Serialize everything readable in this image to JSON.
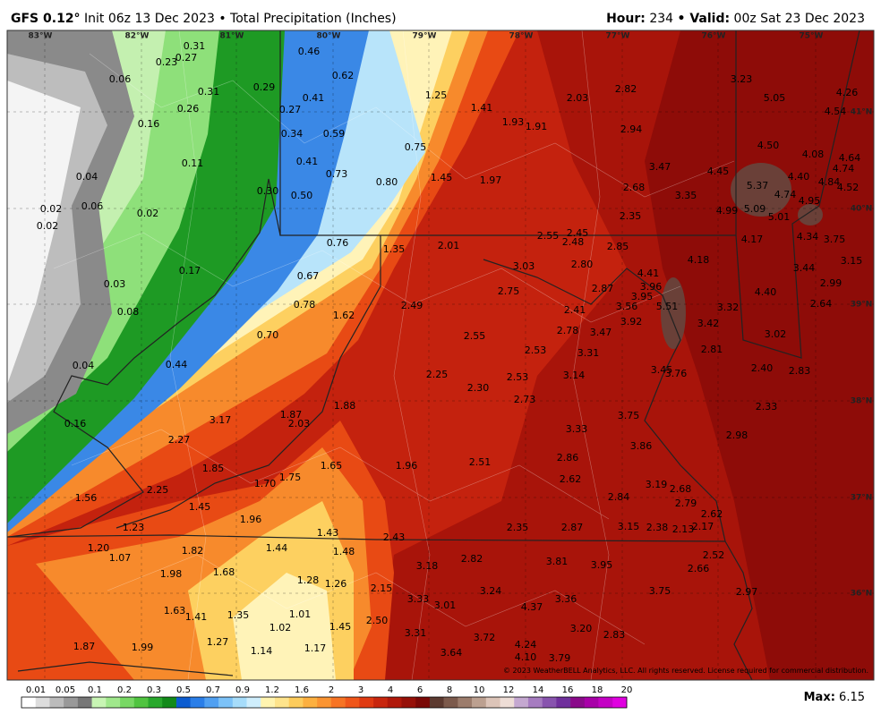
{
  "header": {
    "model": "GFS 0.12°",
    "title": "Init 06z 13 Dec 2023 • Total Precipitation (Inches)",
    "hour_label": "Hour:",
    "hour": "234",
    "valid_label": "• Valid:",
    "valid": "00z Sat 23 Dec 2023"
  },
  "map": {
    "lon_labels": [
      "83°W",
      "82°W",
      "81°W",
      "80°W",
      "79°W",
      "78°W",
      "77°W",
      "76°W",
      "75°W"
    ],
    "lat_labels": [
      "41°N",
      "40°N",
      "39°N",
      "38°N",
      "37°N",
      "36°N"
    ],
    "values": [
      "0.31",
      "0.27",
      "0.23",
      "0.06",
      "0.31",
      "0.29",
      "0.26",
      "0.16",
      "0.11",
      "0.04",
      "0.30",
      "0.02",
      "0.06",
      "0.02",
      "0.02",
      "0.17",
      "0.03",
      "0.08",
      "0.04",
      "0.44",
      "0.16",
      "0.46",
      "0.62",
      "0.41",
      "0.27",
      "0.34",
      "0.59",
      "0.41",
      "0.73",
      "0.80",
      "0.50",
      "0.75",
      "0.76",
      "0.67",
      "0.78",
      "0.70",
      "1.25",
      "1.41",
      "1.93",
      "1.91",
      "1.45",
      "1.97",
      "2.03",
      "1.35",
      "2.01",
      "1.62",
      "2.49",
      "2.82",
      "2.94",
      "3.23",
      "5.05",
      "4.26",
      "4.54",
      "4.50",
      "4.08",
      "4.64",
      "4.74",
      "3.47",
      "4.45",
      "4.40",
      "4.84",
      "4.52",
      "5.37",
      "4.74",
      "4.95",
      "2.68",
      "3.35",
      "4.99",
      "5.09",
      "5.01",
      "2.35",
      "4.34",
      "3.75",
      "4.17",
      "2.55",
      "2.45",
      "2.48",
      "2.85",
      "2.80",
      "3.03",
      "2.75",
      "4.18",
      "3.44",
      "3.15",
      "4.41",
      "2.99",
      "2.87",
      "3.96",
      "3.95",
      "4.40",
      "2.64",
      "3.56",
      "5.51",
      "3.32",
      "2.41",
      "3.92",
      "3.42",
      "2.78",
      "3.47",
      "3.02",
      "2.55",
      "2.53",
      "3.31",
      "2.81",
      "2.40",
      "2.83",
      "3.45",
      "3.76",
      "2.25",
      "3.14",
      "2.53",
      "2.30",
      "2.73",
      "1.88",
      "3.17",
      "1.87",
      "2.03",
      "2.33",
      "3.75",
      "3.33",
      "2.98",
      "2.27",
      "3.86",
      "1.65",
      "1.96",
      "2.51",
      "2.86",
      "1.85",
      "1.75",
      "1.70",
      "2.62",
      "3.19",
      "2.68",
      "2.25",
      "1.56",
      "2.84",
      "2.79",
      "1.45",
      "2.62",
      "1.96",
      "2.35",
      "2.87",
      "3.15",
      "2.38",
      "2.13",
      "2.17",
      "1.23",
      "1.43",
      "2.43",
      "1.20",
      "1.07",
      "1.82",
      "1.44",
      "1.48",
      "2.52",
      "2.82",
      "3.81",
      "3.18",
      "3.95",
      "1.98",
      "1.68",
      "2.66",
      "1.28",
      "1.26",
      "2.15",
      "3.24",
      "3.75",
      "2.97",
      "3.33",
      "3.01",
      "3.36",
      "4.37",
      "1.63",
      "1.41",
      "1.35",
      "1.01",
      "1.02",
      "1.45",
      "2.50",
      "3.20",
      "2.83",
      "3.31",
      "3.72",
      "1.87",
      "1.99",
      "1.27",
      "1.14",
      "1.17",
      "3.64",
      "4.24",
      "4.10",
      "3.79"
    ],
    "copyright": "© 2023 WeatherBELL Analytics, LLC. All rights reserved. License required for commercial distribution."
  },
  "legend": {
    "ticks": [
      "0.01",
      "0.05",
      "0.1",
      "0.2",
      "0.3",
      "0.5",
      "0.7",
      "0.9",
      "1.2",
      "1.6",
      "2",
      "3",
      "4",
      "6",
      "8",
      "10",
      "12",
      "14",
      "16",
      "18",
      "20"
    ],
    "colors": [
      "#ffffff",
      "#dddddd",
      "#bbbbbb",
      "#999999",
      "#777777",
      "#c8f5b4",
      "#a0e88c",
      "#78d864",
      "#50c440",
      "#28a82c",
      "#128a1a",
      "#0c5cd0",
      "#2a7ee8",
      "#50a0f2",
      "#7cc2f8",
      "#a6dcfa",
      "#cfeefc",
      "#fff4b0",
      "#fee48c",
      "#fdcc5c",
      "#fcb040",
      "#fa9432",
      "#f77424",
      "#f0561a",
      "#e03a12",
      "#c8260e",
      "#b0180a",
      "#961008",
      "#7a0806",
      "#5c3a30",
      "#7c5a4c",
      "#9c7c6c",
      "#bca090",
      "#dcc4b8",
      "#eeddd6",
      "#c4a8d0",
      "#a67cc0",
      "#8854ae",
      "#70309c",
      "#8a0a8a",
      "#a800a8",
      "#c400c4",
      "#e000e0"
    ],
    "max_label": "Max:",
    "max": "6.15"
  }
}
